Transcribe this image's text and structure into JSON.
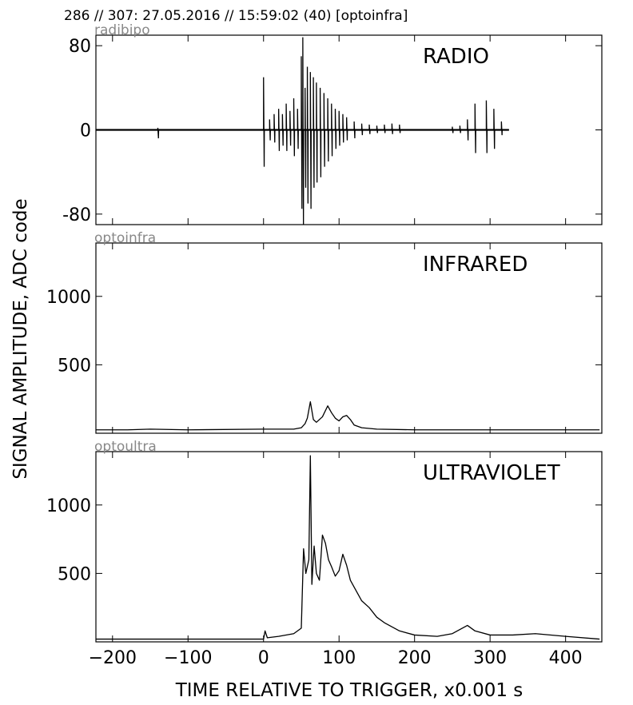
{
  "header": {
    "text": "286 // 307:   27.05.2016 // 15:59:02 (40)  [optoinfra]"
  },
  "ylabel": "SIGNAL AMPLITUDE,  ADC code",
  "xlabel": "TIME RELATIVE TO TRIGGER,   x0.001 s",
  "colors": {
    "trace": "#000000",
    "tag": "#888888",
    "frame": "#000000"
  },
  "chart_data": [
    {
      "type": "line",
      "tag": "radibipo",
      "label": "RADIO",
      "xlim": [
        -222,
        448
      ],
      "ylim": [
        -90,
        90
      ],
      "yticks": [
        80,
        0,
        -80
      ],
      "ytick_labels": [
        "80",
        "0",
        "-80"
      ],
      "series": [
        {
          "baseline": 0,
          "x": [
            -222,
            325
          ],
          "spikes": [
            [
              -140,
              2,
              -8
            ],
            [
              0,
              50,
              -35
            ],
            [
              8,
              10,
              -10
            ],
            [
              14,
              15,
              -12
            ],
            [
              20,
              20,
              -20
            ],
            [
              25,
              15,
              -15
            ],
            [
              30,
              25,
              -20
            ],
            [
              35,
              18,
              -15
            ],
            [
              40,
              30,
              -25
            ],
            [
              45,
              20,
              -18
            ],
            [
              50,
              70,
              -75
            ],
            [
              52,
              88,
              -90
            ],
            [
              55,
              40,
              -55
            ],
            [
              58,
              60,
              -70
            ],
            [
              62,
              55,
              -75
            ],
            [
              66,
              50,
              -55
            ],
            [
              70,
              45,
              -50
            ],
            [
              75,
              40,
              -45
            ],
            [
              80,
              35,
              -35
            ],
            [
              85,
              30,
              -30
            ],
            [
              90,
              25,
              -25
            ],
            [
              95,
              20,
              -18
            ],
            [
              100,
              18,
              -15
            ],
            [
              105,
              15,
              -12
            ],
            [
              110,
              12,
              -10
            ],
            [
              120,
              8,
              -8
            ],
            [
              130,
              6,
              -5
            ],
            [
              140,
              5,
              -4
            ],
            [
              150,
              4,
              -3
            ],
            [
              160,
              5,
              -3
            ],
            [
              170,
              6,
              -4
            ],
            [
              180,
              5,
              -3
            ],
            [
              250,
              3,
              -3
            ],
            [
              260,
              4,
              -3
            ],
            [
              270,
              10,
              -10
            ],
            [
              280,
              25,
              -22
            ],
            [
              295,
              28,
              -22
            ],
            [
              305,
              20,
              -18
            ],
            [
              315,
              8,
              -5
            ]
          ]
        }
      ]
    },
    {
      "type": "line",
      "tag": "optoinfra",
      "label": "INFRARED",
      "xlim": [
        -222,
        448
      ],
      "ylim": [
        0,
        1390
      ],
      "yticks": [
        1000,
        500
      ],
      "ytick_labels": [
        "1000",
        "500"
      ],
      "series": [
        {
          "x": [
            -222,
            -180,
            -150,
            -100,
            0,
            40,
            50,
            55,
            58,
            62,
            66,
            70,
            78,
            85,
            90,
            95,
            100,
            105,
            110,
            115,
            120,
            130,
            150,
            200,
            250,
            300,
            350,
            400,
            445
          ],
          "y": [
            25,
            25,
            30,
            25,
            30,
            30,
            40,
            70,
            110,
            230,
            100,
            80,
            120,
            200,
            150,
            110,
            90,
            120,
            130,
            100,
            60,
            40,
            30,
            25,
            25,
            25,
            25,
            25,
            25
          ]
        }
      ]
    },
    {
      "type": "line",
      "tag": "optoultra",
      "label": "ULTRAVIOLET",
      "xlim": [
        -222,
        448
      ],
      "ylim": [
        0,
        1390
      ],
      "yticks": [
        1000,
        500
      ],
      "ytick_labels": [
        "1000",
        "500"
      ],
      "xticks": [
        -200,
        -100,
        0,
        100,
        200,
        300,
        400
      ],
      "xtick_labels": [
        "−200",
        "−100",
        "0",
        "100",
        "200",
        "300",
        "400"
      ],
      "series": [
        {
          "x": [
            -222,
            -150,
            -50,
            -5,
            0,
            2,
            5,
            20,
            40,
            50,
            53,
            56,
            60,
            62,
            64,
            67,
            70,
            74,
            78,
            82,
            86,
            90,
            95,
            100,
            105,
            110,
            115,
            120,
            130,
            140,
            150,
            160,
            170,
            180,
            200,
            230,
            250,
            260,
            270,
            280,
            300,
            330,
            360,
            400,
            445
          ],
          "y": [
            20,
            20,
            20,
            20,
            20,
            80,
            30,
            40,
            60,
            100,
            680,
            500,
            600,
            1360,
            420,
            700,
            500,
            450,
            780,
            720,
            600,
            550,
            480,
            520,
            640,
            560,
            450,
            400,
            300,
            250,
            180,
            140,
            110,
            80,
            50,
            40,
            60,
            90,
            120,
            80,
            50,
            50,
            60,
            40,
            20
          ]
        }
      ]
    }
  ]
}
